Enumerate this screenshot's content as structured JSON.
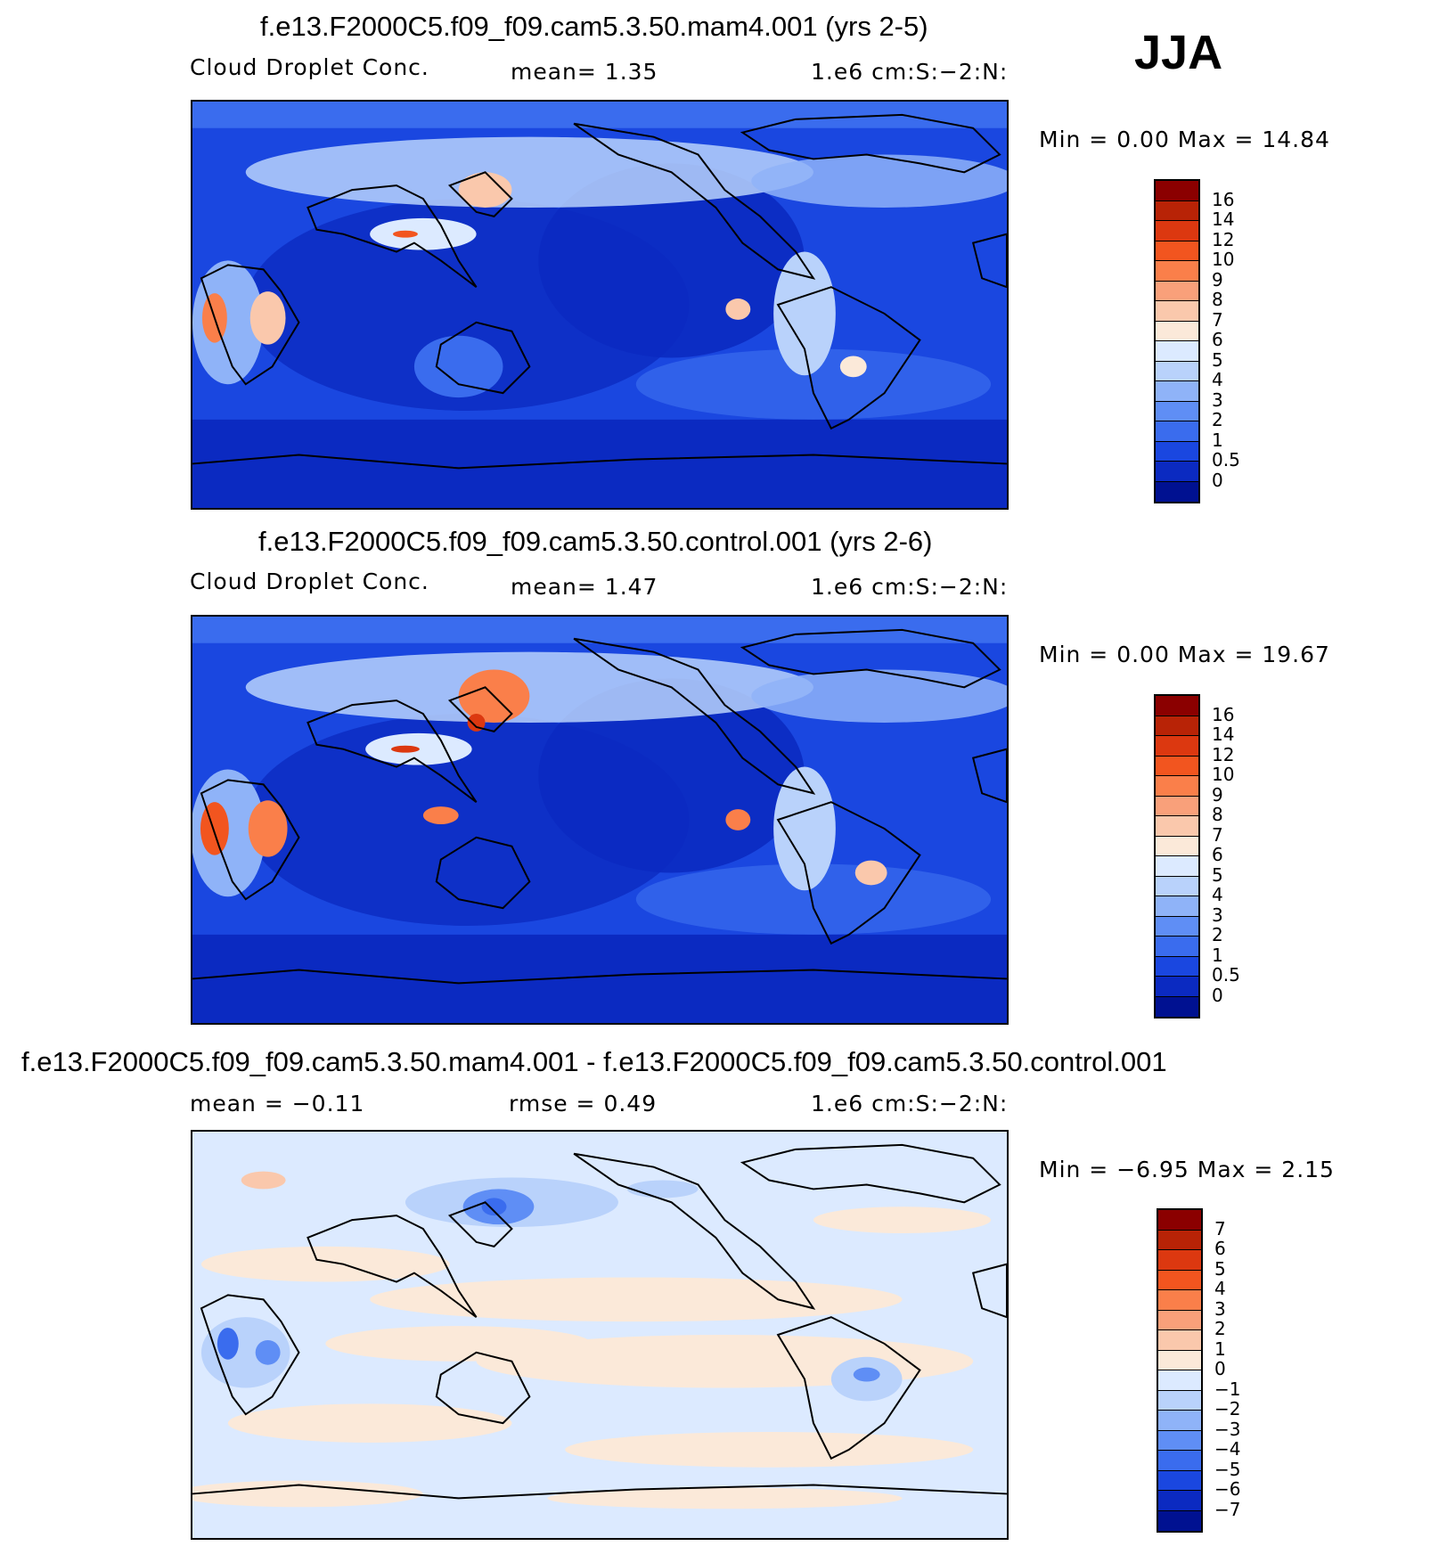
{
  "season": "JJA",
  "panels": [
    {
      "title": "f.e13.F2000C5.f09_f09.cam5.3.50.mam4.001 (yrs 2-5)",
      "left_label": "Cloud Droplet Conc.",
      "mid_label": "mean=    1.35",
      "right_label": "1.e6 cm:S:−2:N:",
      "minmax": "Min =    0.00  Max =   14.84",
      "colorbar": {
        "labels": [
          "16",
          "14",
          "12",
          "10",
          "9",
          "8",
          "7",
          "6",
          "5",
          "4",
          "3",
          "2",
          "1",
          "0.5",
          "0"
        ],
        "colors": [
          "#8b0000",
          "#b82306",
          "#dc3810",
          "#f2551f",
          "#fa7f4a",
          "#f9a07a",
          "#fac8ac",
          "#fbe9d9",
          "#dceaff",
          "#b9d2fb",
          "#8fb3f8",
          "#5f8ef5",
          "#3a6cee",
          "#1a47e0",
          "#0b2ac1",
          "#001191"
        ]
      }
    },
    {
      "title": "f.e13.F2000C5.f09_f09.cam5.3.50.control.001 (yrs 2-6)",
      "left_label": "Cloud Droplet Conc.",
      "mid_label": "mean=    1.47",
      "right_label": "1.e6 cm:S:−2:N:",
      "minmax": "Min =    0.00  Max =   19.67",
      "colorbar": {
        "labels": [
          "16",
          "14",
          "12",
          "10",
          "9",
          "8",
          "7",
          "6",
          "5",
          "4",
          "3",
          "2",
          "1",
          "0.5",
          "0"
        ],
        "colors": [
          "#8b0000",
          "#b82306",
          "#dc3810",
          "#f2551f",
          "#fa7f4a",
          "#f9a07a",
          "#fac8ac",
          "#fbe9d9",
          "#dceaff",
          "#b9d2fb",
          "#8fb3f8",
          "#5f8ef5",
          "#3a6cee",
          "#1a47e0",
          "#0b2ac1",
          "#001191"
        ]
      }
    },
    {
      "title": "f.e13.F2000C5.f09_f09.cam5.3.50.mam4.001 - f.e13.F2000C5.f09_f09.cam5.3.50.control.001",
      "left_label": "mean =   −0.11",
      "mid_label": "rmse =    0.49",
      "right_label": "1.e6 cm:S:−2:N:",
      "minmax": "Min =   −6.95  Max =    2.15",
      "colorbar": {
        "labels": [
          "7",
          "6",
          "5",
          "4",
          "3",
          "2",
          "1",
          "0",
          "−1",
          "−2",
          "−3",
          "−4",
          "−5",
          "−6",
          "−7"
        ],
        "colors": [
          "#8b0000",
          "#b82306",
          "#dc3810",
          "#f2551f",
          "#fa7f4a",
          "#f9a07a",
          "#fac8ac",
          "#fbe9d9",
          "#dceaff",
          "#b9d2fb",
          "#8fb3f8",
          "#5f8ef5",
          "#3a6cee",
          "#1a47e0",
          "#0b2ac1",
          "#001191"
        ]
      }
    }
  ]
}
